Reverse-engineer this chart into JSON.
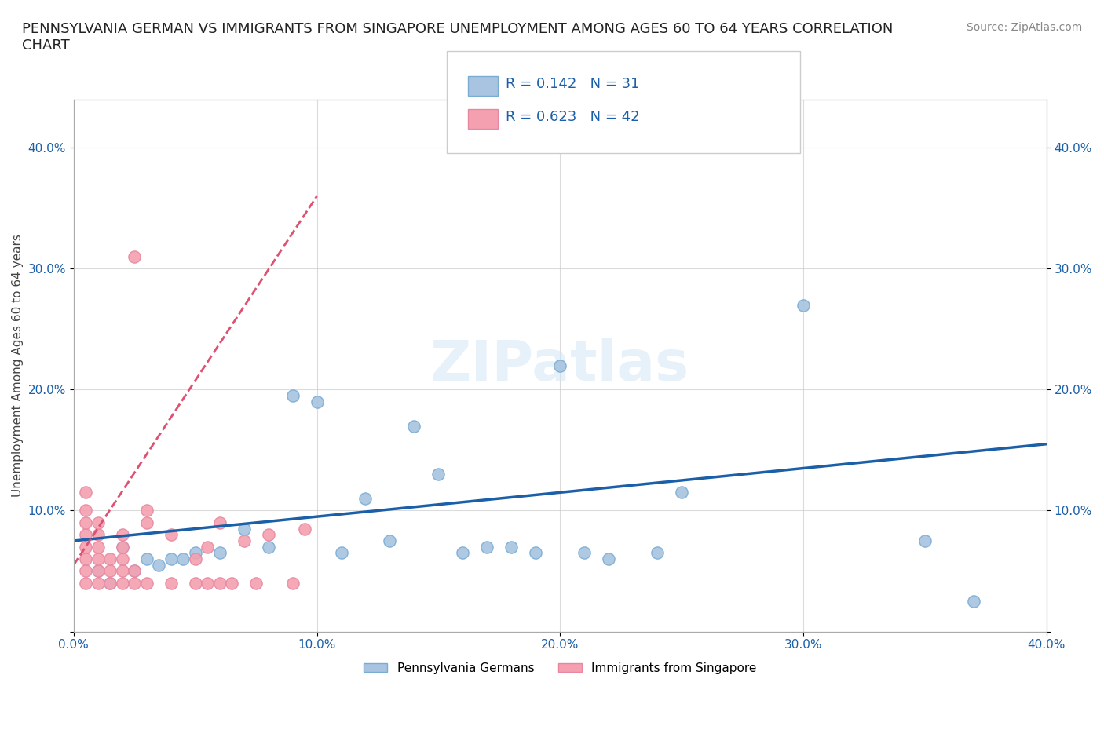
{
  "title": "PENNSYLVANIA GERMAN VS IMMIGRANTS FROM SINGAPORE UNEMPLOYMENT AMONG AGES 60 TO 64 YEARS CORRELATION\nCHART",
  "source_text": "Source: ZipAtlas.com",
  "ylabel": "Unemployment Among Ages 60 to 64 years",
  "xlabel": "",
  "xlim": [
    0.0,
    0.4
  ],
  "ylim": [
    0.0,
    0.44
  ],
  "yticks": [
    0.0,
    0.1,
    0.2,
    0.3,
    0.4
  ],
  "xticks": [
    0.0,
    0.1,
    0.2,
    0.3,
    0.4
  ],
  "xtick_labels": [
    "0.0%",
    "10.0%",
    "20.0%",
    "30.0%",
    "40.0%"
  ],
  "ytick_labels": [
    "",
    "10.0%",
    "20.0%",
    "30.0%",
    "40.0%"
  ],
  "blue_scatter_x": [
    0.02,
    0.03,
    0.01,
    0.04,
    0.05,
    0.015,
    0.025,
    0.035,
    0.045,
    0.06,
    0.07,
    0.08,
    0.09,
    0.1,
    0.11,
    0.13,
    0.14,
    0.12,
    0.15,
    0.16,
    0.17,
    0.18,
    0.19,
    0.2,
    0.21,
    0.22,
    0.24,
    0.25,
    0.3,
    0.35,
    0.37
  ],
  "blue_scatter_y": [
    0.07,
    0.06,
    0.05,
    0.06,
    0.065,
    0.04,
    0.05,
    0.055,
    0.06,
    0.065,
    0.085,
    0.07,
    0.195,
    0.19,
    0.065,
    0.075,
    0.17,
    0.11,
    0.13,
    0.065,
    0.07,
    0.07,
    0.065,
    0.22,
    0.065,
    0.06,
    0.065,
    0.115,
    0.27,
    0.075,
    0.025
  ],
  "pink_scatter_x": [
    0.005,
    0.005,
    0.005,
    0.005,
    0.005,
    0.005,
    0.005,
    0.005,
    0.01,
    0.01,
    0.01,
    0.01,
    0.01,
    0.01,
    0.015,
    0.015,
    0.015,
    0.02,
    0.02,
    0.02,
    0.02,
    0.02,
    0.025,
    0.025,
    0.025,
    0.03,
    0.03,
    0.03,
    0.04,
    0.04,
    0.05,
    0.05,
    0.055,
    0.055,
    0.06,
    0.06,
    0.065,
    0.07,
    0.075,
    0.08,
    0.09,
    0.095
  ],
  "pink_scatter_y": [
    0.04,
    0.05,
    0.06,
    0.07,
    0.08,
    0.09,
    0.1,
    0.115,
    0.04,
    0.05,
    0.06,
    0.07,
    0.08,
    0.09,
    0.04,
    0.05,
    0.06,
    0.04,
    0.05,
    0.06,
    0.07,
    0.08,
    0.04,
    0.05,
    0.31,
    0.04,
    0.09,
    0.1,
    0.04,
    0.08,
    0.04,
    0.06,
    0.04,
    0.07,
    0.04,
    0.09,
    0.04,
    0.075,
    0.04,
    0.08,
    0.04,
    0.085
  ],
  "blue_line_x": [
    0.0,
    0.4
  ],
  "blue_line_y": [
    0.075,
    0.155
  ],
  "pink_line_x": [
    0.0,
    0.1
  ],
  "pink_line_y": [
    0.055,
    0.36
  ],
  "R_blue": "0.142",
  "N_blue": "31",
  "R_pink": "0.623",
  "N_pink": "42",
  "blue_color": "#a8c4e0",
  "pink_color": "#f4a0b0",
  "blue_line_color": "#1a5fa8",
  "pink_line_color": "#e05070",
  "blue_dot_edge": "#7aadd4",
  "pink_dot_edge": "#e888a0",
  "grid_color": "#cccccc",
  "background_color": "#ffffff",
  "watermark": "ZIPatlas",
  "legend_label_blue": "Pennsylvania Germans",
  "legend_label_pink": "Immigrants from Singapore"
}
